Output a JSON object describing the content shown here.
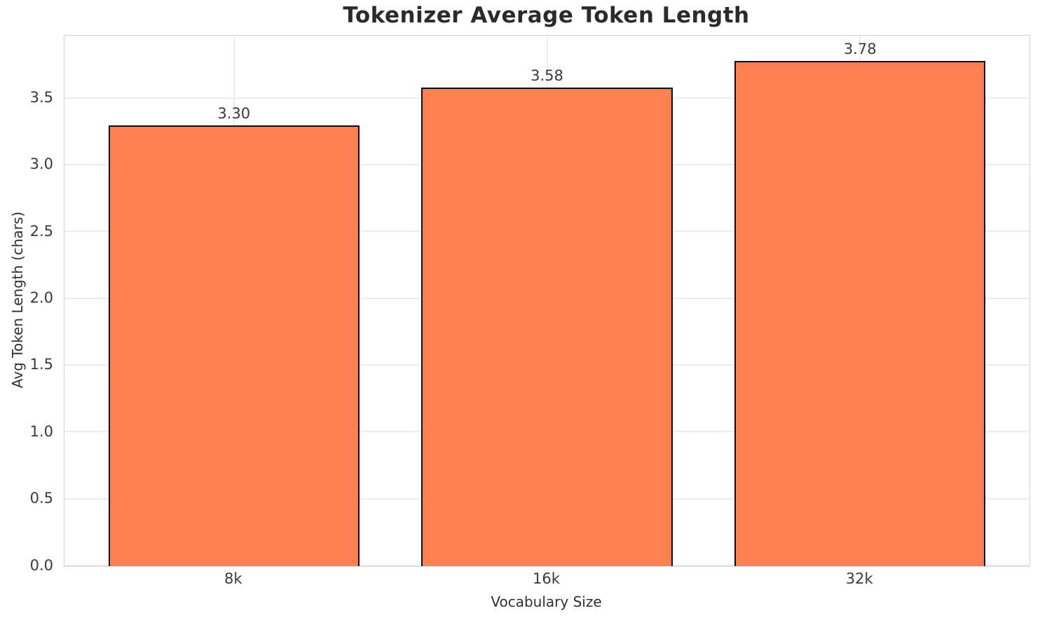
{
  "chart_data": {
    "type": "bar",
    "title": "Tokenizer Average Token Length",
    "xlabel": "Vocabulary Size",
    "ylabel": "Avg Token Length (chars)",
    "categories": [
      "8k",
      "16k",
      "32k"
    ],
    "values": [
      3.3,
      3.58,
      3.78
    ],
    "value_labels": [
      "3.30",
      "3.58",
      "3.78"
    ],
    "ytick_labels": [
      "0.0",
      "0.5",
      "1.0",
      "1.5",
      "2.0",
      "2.5",
      "3.0",
      "3.5"
    ],
    "yticks": [
      0.0,
      0.5,
      1.0,
      1.5,
      2.0,
      2.5,
      3.0,
      3.5
    ],
    "ylim": [
      0,
      3.97
    ],
    "grid": true,
    "legend": false,
    "bar_color": "#FF7F50",
    "bar_edge_color": "#0d0d0d"
  }
}
